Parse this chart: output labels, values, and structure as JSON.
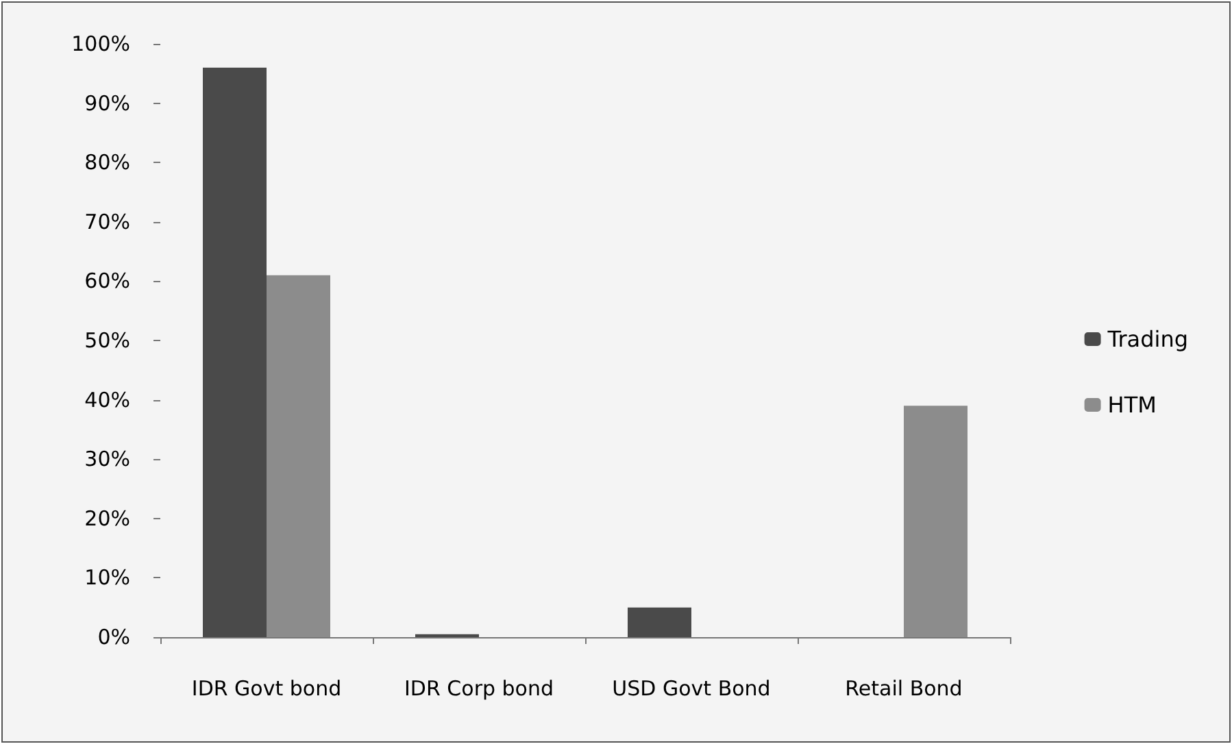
{
  "chart_data": {
    "type": "bar",
    "categories": [
      "IDR Govt bond",
      "IDR Corp bond",
      "USD Govt Bond",
      "Retail Bond"
    ],
    "series": [
      {
        "name": "Trading",
        "color": "#4a4a4a",
        "values": [
          96,
          0.5,
          5,
          0
        ]
      },
      {
        "name": "HTM",
        "color": "#8c8c8c",
        "values": [
          61,
          0,
          0,
          39
        ]
      }
    ],
    "ylim": [
      0,
      100
    ],
    "yticks": [
      {
        "value": 0,
        "label": "0%"
      },
      {
        "value": 10,
        "label": "10%"
      },
      {
        "value": 20,
        "label": "20%"
      },
      {
        "value": 30,
        "label": "30%"
      },
      {
        "value": 40,
        "label": "40%"
      },
      {
        "value": 50,
        "label": "50%"
      },
      {
        "value": 60,
        "label": "60%"
      },
      {
        "value": 70,
        "label": "70%"
      },
      {
        "value": 80,
        "label": "80%"
      },
      {
        "value": 90,
        "label": "90%"
      },
      {
        "value": 100,
        "label": "100%"
      }
    ],
    "grid": false,
    "legend": "right"
  }
}
